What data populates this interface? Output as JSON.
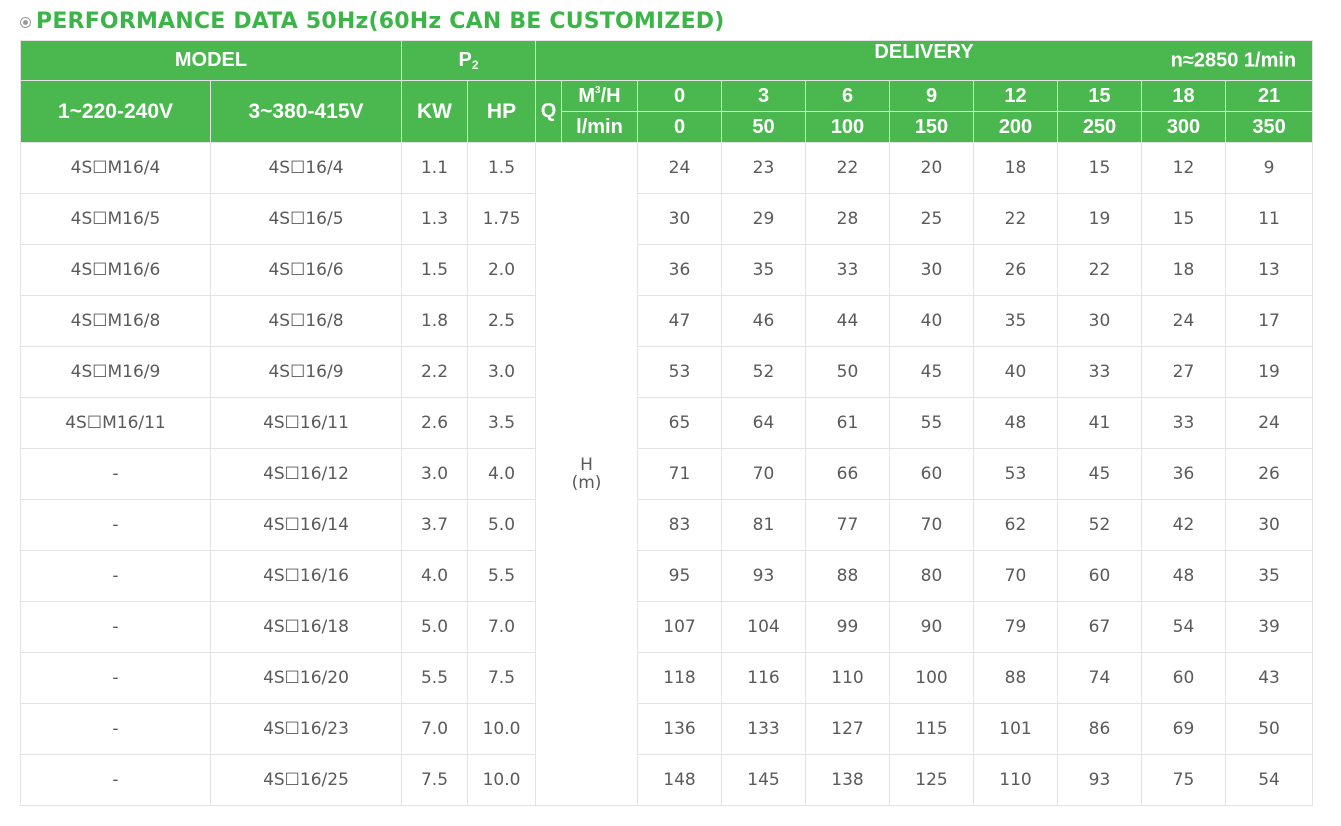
{
  "title": "PERFORMANCE DATA 50Hz(60Hz CAN BE CUSTOMIZED)",
  "headers": {
    "model": "MODEL",
    "p2_base": "P",
    "p2_sub": "2",
    "delivery": "DELIVERY",
    "speed": "n≈2850 1/min",
    "single_phase": "1~220-240V",
    "three_phase": "3~380-415V",
    "kw": "KW",
    "hp": "HP",
    "q": "Q",
    "m3h_base": "M",
    "m3h_sup": "3",
    "m3h_tail": "/H",
    "lmin": "l/min",
    "head_label": "H",
    "head_unit": "(m)"
  },
  "flow_m3h": [
    "0",
    "3",
    "6",
    "9",
    "12",
    "15",
    "18",
    "21"
  ],
  "flow_lmin": [
    "0",
    "50",
    "100",
    "150",
    "200",
    "250",
    "300",
    "350"
  ],
  "rows": [
    {
      "single": "4S☐M16/4",
      "three": "4S☐16/4",
      "kw": "1.1",
      "hp": "1.5",
      "h": [
        "24",
        "23",
        "22",
        "20",
        "18",
        "15",
        "12",
        "9"
      ]
    },
    {
      "single": "4S☐M16/5",
      "three": "4S☐16/5",
      "kw": "1.3",
      "hp": "1.75",
      "h": [
        "30",
        "29",
        "28",
        "25",
        "22",
        "19",
        "15",
        "11"
      ]
    },
    {
      "single": "4S☐M16/6",
      "three": "4S☐16/6",
      "kw": "1.5",
      "hp": "2.0",
      "h": [
        "36",
        "35",
        "33",
        "30",
        "26",
        "22",
        "18",
        "13"
      ]
    },
    {
      "single": "4S☐M16/8",
      "three": "4S☐16/8",
      "kw": "1.8",
      "hp": "2.5",
      "h": [
        "47",
        "46",
        "44",
        "40",
        "35",
        "30",
        "24",
        "17"
      ]
    },
    {
      "single": "4S☐M16/9",
      "three": "4S☐16/9",
      "kw": "2.2",
      "hp": "3.0",
      "h": [
        "53",
        "52",
        "50",
        "45",
        "40",
        "33",
        "27",
        "19"
      ]
    },
    {
      "single": "4S☐M16/11",
      "three": "4S☐16/11",
      "kw": "2.6",
      "hp": "3.5",
      "h": [
        "65",
        "64",
        "61",
        "55",
        "48",
        "41",
        "33",
        "24"
      ]
    },
    {
      "single": "-",
      "three": "4S☐16/12",
      "kw": "3.0",
      "hp": "4.0",
      "h": [
        "71",
        "70",
        "66",
        "60",
        "53",
        "45",
        "36",
        "26"
      ]
    },
    {
      "single": "-",
      "three": "4S☐16/14",
      "kw": "3.7",
      "hp": "5.0",
      "h": [
        "83",
        "81",
        "77",
        "70",
        "62",
        "52",
        "42",
        "30"
      ]
    },
    {
      "single": "-",
      "three": "4S☐16/16",
      "kw": "4.0",
      "hp": "5.5",
      "h": [
        "95",
        "93",
        "88",
        "80",
        "70",
        "60",
        "48",
        "35"
      ]
    },
    {
      "single": "-",
      "three": "4S☐16/18",
      "kw": "5.0",
      "hp": "7.0",
      "h": [
        "107",
        "104",
        "99",
        "90",
        "79",
        "67",
        "54",
        "39"
      ]
    },
    {
      "single": "-",
      "three": "4S☐16/20",
      "kw": "5.5",
      "hp": "7.5",
      "h": [
        "118",
        "116",
        "110",
        "100",
        "88",
        "74",
        "60",
        "43"
      ]
    },
    {
      "single": "-",
      "three": "4S☐16/23",
      "kw": "7.0",
      "hp": "10.0",
      "h": [
        "136",
        "133",
        "127",
        "115",
        "101",
        "86",
        "69",
        "50"
      ]
    },
    {
      "single": "-",
      "three": "4S☐16/25",
      "kw": "7.5",
      "hp": "10.0",
      "h": [
        "148",
        "145",
        "138",
        "125",
        "110",
        "93",
        "75",
        "54"
      ]
    }
  ],
  "colors": {
    "accent_green": "#4ab74f",
    "title_green": "#3cb548",
    "header_text": "#ffffff",
    "cell_text": "#5a5a5a",
    "grid": "#e3e3e3"
  }
}
